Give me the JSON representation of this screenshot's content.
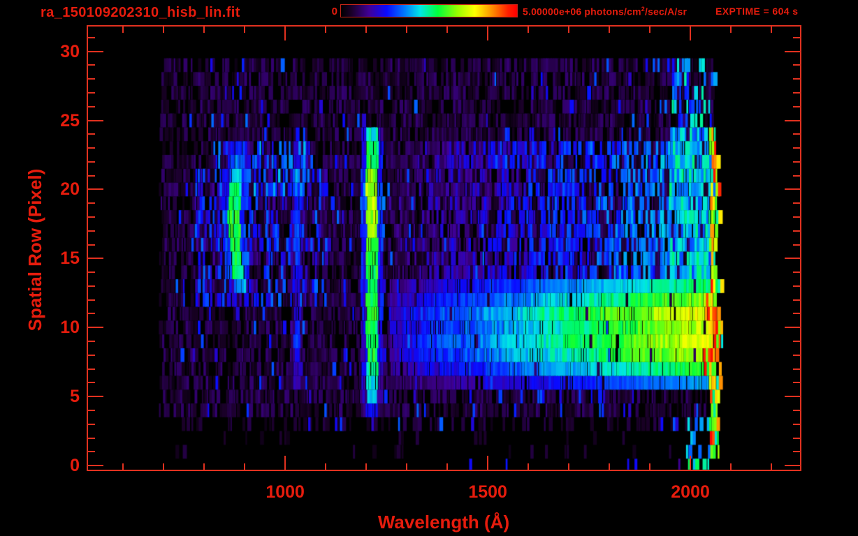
{
  "window": {
    "bg": "#000000"
  },
  "header": {
    "title": "ra_150109202310_hisb_lin.fit",
    "exptime": "EXPTIME = 604 s",
    "colorbar": {
      "min_label": "0",
      "max_label_prefix": "5.00000e+06 photons/cm",
      "max_label_sup": "2",
      "max_label_suffix": "/sec/A/sr"
    }
  },
  "colors": {
    "label": "#e61c0d",
    "frame": "#e2311f",
    "background": "#000000"
  },
  "chart_data": {
    "type": "heatmap",
    "title": "ra_150109202310_hisb_lin.fit",
    "xlabel": "Wavelength (Å)",
    "ylabel": "Spatial Row (Pixel)",
    "xlim": [
      510,
      2274
    ],
    "ylim": [
      -0.4,
      31.9
    ],
    "x_major_ticks": [
      1000,
      1500,
      2000
    ],
    "x_minor_ticks": [
      600,
      700,
      800,
      900,
      1100,
      1200,
      1300,
      1400,
      1600,
      1700,
      1800,
      1900,
      2100,
      2200
    ],
    "y_major_ticks": [
      0,
      5,
      10,
      15,
      20,
      25,
      30
    ],
    "y_minor_ticks": [
      1,
      2,
      3,
      4,
      6,
      7,
      8,
      9,
      11,
      12,
      13,
      14,
      16,
      17,
      18,
      19,
      21,
      22,
      23,
      24,
      26,
      27,
      28,
      29,
      31
    ],
    "colorbar": {
      "min": 0,
      "max": 5000000,
      "units": "photons/cm2/sec/A/sr"
    },
    "exposure_time_s": 604,
    "grid": false,
    "colormap_stops": [
      {
        "t": 0.0,
        "color": "#000000"
      },
      {
        "t": 0.06,
        "color": "#1a0028"
      },
      {
        "t": 0.16,
        "color": "#400096"
      },
      {
        "t": 0.26,
        "color": "#0a0aff"
      },
      {
        "t": 0.36,
        "color": "#0078ff"
      },
      {
        "t": 0.45,
        "color": "#00e6e6"
      },
      {
        "t": 0.55,
        "color": "#00ff3c"
      },
      {
        "t": 0.66,
        "color": "#96ff00"
      },
      {
        "t": 0.76,
        "color": "#ffff00"
      },
      {
        "t": 0.86,
        "color": "#ff8c00"
      },
      {
        "t": 0.95,
        "color": "#ff1e00"
      },
      {
        "t": 1.0,
        "color": "#ff0000"
      }
    ],
    "data_extent": {
      "lambda": [
        687,
        2080
      ],
      "rows": [
        0,
        30
      ]
    },
    "features": [
      {
        "id": "noise-floor",
        "kind": "noise",
        "rows": [
          4,
          29
        ],
        "lambda": [
          687,
          2058
        ],
        "density": 0.7,
        "intensity": [
          0.03,
          0.13
        ]
      },
      {
        "id": "noise-row3",
        "kind": "noise",
        "rows": [
          3,
          3
        ],
        "lambda": [
          687,
          2050
        ],
        "density": 0.32,
        "intensity": [
          0.03,
          0.1
        ]
      },
      {
        "id": "noise-rows1-2",
        "kind": "noise",
        "rows": [
          1,
          2
        ],
        "lambda": [
          725,
          2040
        ],
        "density": 0.06,
        "intensity": [
          0.03,
          0.09
        ]
      },
      {
        "id": "noise-row0",
        "kind": "noise",
        "rows": [
          0,
          0
        ],
        "lambda": [
          1300,
          2010
        ],
        "density": 0.03,
        "intensity": [
          0.12,
          0.28
        ]
      },
      {
        "id": "blue-specks",
        "kind": "noise",
        "rows": [
          3,
          29
        ],
        "lambda": [
          690,
          2055
        ],
        "density": 0.05,
        "intensity": [
          0.2,
          0.35
        ]
      },
      {
        "id": "mid-left-blue-field",
        "kind": "noise",
        "rows": [
          12,
          21
        ],
        "lambda": [
          775,
          1100
        ],
        "density": 0.4,
        "intensity": [
          0.15,
          0.35
        ]
      },
      {
        "id": "upper-left-blue-patch",
        "kind": "noise",
        "rows": [
          20,
          23
        ],
        "lambda": [
          815,
          1065
        ],
        "density": 0.5,
        "intensity": [
          0.2,
          0.42
        ]
      },
      {
        "id": "solar-continuum-band",
        "kind": "ramp",
        "rows": [
          6,
          13
        ],
        "lambda": [
          1255,
          2062
        ],
        "density": 0.96,
        "base": 0.2,
        "gain": 0.52,
        "jitter": 0.05,
        "row_weights": [
          0.55,
          0.82,
          0.98,
          1.05,
          1.0,
          1.08,
          0.92,
          0.75
        ]
      },
      {
        "id": "upper-band-ramp",
        "kind": "ramp",
        "rows": [
          14,
          23
        ],
        "lambda": [
          1250,
          2062
        ],
        "density": 0.6,
        "base": 0.1,
        "gain": 0.32,
        "jitter": 0.07
      },
      {
        "id": "upper-band-right-green",
        "kind": "noise",
        "rows": [
          14,
          24
        ],
        "lambda": [
          1945,
          2062
        ],
        "density": 0.7,
        "intensity": [
          0.3,
          0.52
        ]
      },
      {
        "id": "upper-right-cyan",
        "kind": "noise",
        "rows": [
          24,
          29
        ],
        "lambda": [
          1950,
          2058
        ],
        "density": 0.45,
        "intensity": [
          0.25,
          0.5
        ]
      },
      {
        "id": "lyman-alpha-line",
        "kind": "vline",
        "center": 1212,
        "core_hw": 14,
        "halo_hw": 28,
        "halo_factor": 0.45,
        "rows": [
          4,
          24
        ],
        "row_intensity": [
          0.26,
          0.4,
          0.45,
          0.5,
          0.54,
          0.55,
          0.55,
          0.56,
          0.55,
          0.55,
          0.56,
          0.57,
          0.6,
          0.64,
          0.68,
          0.72,
          0.7,
          0.62,
          0.56,
          0.52,
          0.46
        ]
      },
      {
        "id": "lyman-beta-line",
        "kind": "vline",
        "center": 1027,
        "core_hw": 8,
        "halo_hw": 16,
        "halo_factor": 0.5,
        "rows": [
          6,
          23
        ],
        "row_intensity": [
          0.18,
          0.2,
          0.26,
          0.3,
          0.28,
          0.22,
          0.2,
          0.22,
          0.24,
          0.3,
          0.32,
          0.3,
          0.28,
          0.26,
          0.3,
          0.26,
          0.22,
          0.2
        ]
      },
      {
        "id": "arc-feature",
        "kind": "arc",
        "rows": [
          13,
          23
        ],
        "center_base": 891,
        "center_amp": 20,
        "core_hw": 14,
        "halo_hw": 28,
        "halo_factor": 0.55,
        "row_intensity": [
          0.4,
          0.5,
          0.55,
          0.56,
          0.56,
          0.55,
          0.54,
          0.5,
          0.42,
          0.32,
          0.27
        ]
      },
      {
        "id": "hot-edge-red",
        "kind": "noise",
        "rows": [
          6,
          12
        ],
        "lambda": [
          2030,
          2076
        ],
        "density": 0.5,
        "intensity": [
          0.78,
          1.0
        ]
      },
      {
        "id": "bright-right-edge",
        "kind": "noise",
        "rows": [
          1,
          24
        ],
        "lambda": [
          2046,
          2076
        ],
        "density": 0.8,
        "intensity": [
          0.45,
          1.0
        ]
      },
      {
        "id": "bottom-right-specks",
        "kind": "noise",
        "rows": [
          0,
          3
        ],
        "lambda": [
          1985,
          2068
        ],
        "density": 0.3,
        "intensity": [
          0.3,
          0.6
        ]
      }
    ]
  }
}
